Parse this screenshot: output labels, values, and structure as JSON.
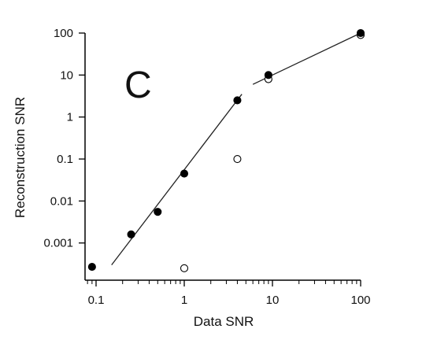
{
  "chart_data": {
    "type": "scatter",
    "panel_label": "C",
    "xlabel": "Data SNR",
    "ylabel": "Reconstruction SNR",
    "x_scale": "log",
    "y_scale": "log",
    "xlim": [
      0.075,
      100
    ],
    "ylim": [
      0.00013,
      100
    ],
    "x_ticks": [
      {
        "value": 0.1,
        "label": "0.1"
      },
      {
        "value": 1,
        "label": "1"
      },
      {
        "value": 10,
        "label": "10"
      },
      {
        "value": 100,
        "label": "100"
      }
    ],
    "y_ticks": [
      {
        "value": 0.001,
        "label": "0.001"
      },
      {
        "value": 0.01,
        "label": "0.01"
      },
      {
        "value": 0.1,
        "label": "0.1"
      },
      {
        "value": 1,
        "label": "1"
      },
      {
        "value": 10,
        "label": "10"
      },
      {
        "value": 100,
        "label": "100"
      }
    ],
    "grid": false,
    "series": [
      {
        "marker": "filled-circle",
        "points": [
          {
            "x": 0.09,
            "y": 0.00027
          },
          {
            "x": 0.25,
            "y": 0.0016
          },
          {
            "x": 0.5,
            "y": 0.0055
          },
          {
            "x": 1,
            "y": 0.045
          },
          {
            "x": 4,
            "y": 2.5
          },
          {
            "x": 9,
            "y": 10
          },
          {
            "x": 100,
            "y": 100
          }
        ]
      },
      {
        "marker": "open-circle",
        "points": [
          {
            "x": 1,
            "y": 0.00025
          },
          {
            "x": 4,
            "y": 0.1
          },
          {
            "x": 9,
            "y": 8
          },
          {
            "x": 100,
            "y": 90
          }
        ]
      }
    ],
    "fit_lines": [
      {
        "x": [
          0.15,
          4.5
        ],
        "y": [
          0.0003,
          3.5
        ]
      },
      {
        "x": [
          6,
          100
        ],
        "y": [
          6,
          100
        ]
      }
    ]
  }
}
